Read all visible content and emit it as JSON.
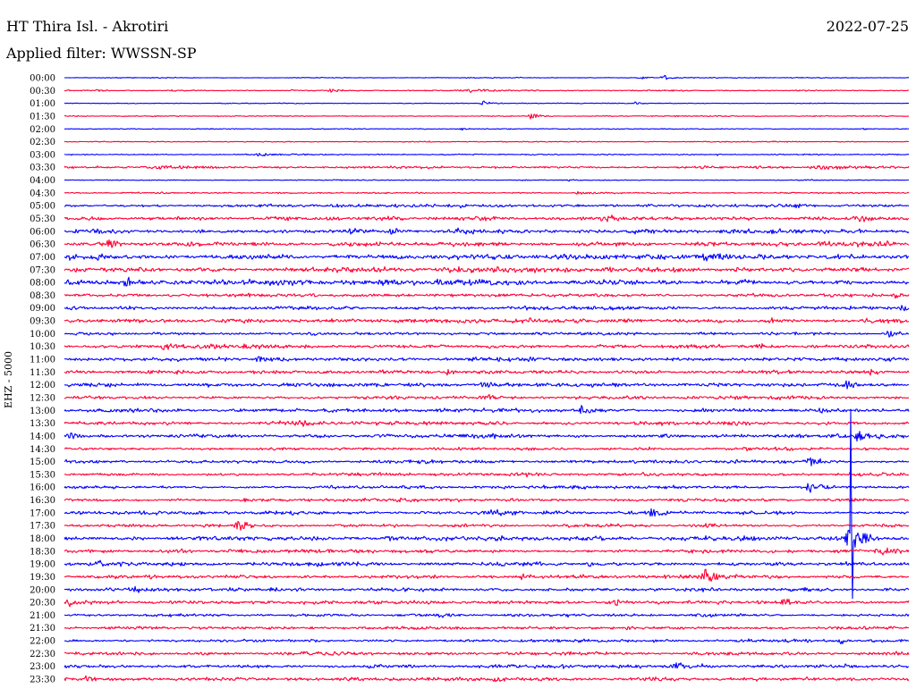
{
  "chart_data": {
    "type": "line",
    "title": "HT Thira Isl. - Akrotiri",
    "date": "2022-07-25",
    "subtitle": "Applied filter: WWSSN-SP",
    "ylabel": "EHZ - 5000",
    "xlim": [
      0,
      30
    ],
    "grid": false,
    "trace_colors": [
      "#0000ff",
      "#ff0033"
    ],
    "rows": [
      {
        "label": "00:00",
        "noise": 100,
        "events": [
          {
            "minute": 20.4,
            "amplitude": 700,
            "duration": 0.5
          },
          {
            "minute": 21.3,
            "amplitude": 1000,
            "duration": 0.6
          }
        ]
      },
      {
        "label": "00:30",
        "noise": 140,
        "events": [
          {
            "minute": 1.2,
            "amplitude": 500,
            "duration": 0.3
          },
          {
            "minute": 3.8,
            "amplitude": 500,
            "duration": 0.3
          },
          {
            "minute": 8.1,
            "amplitude": 500,
            "duration": 0.3
          },
          {
            "minute": 9.5,
            "amplitude": 700,
            "duration": 0.8
          },
          {
            "minute": 14.3,
            "amplitude": 700,
            "duration": 1.5
          }
        ]
      },
      {
        "label": "01:00",
        "noise": 100,
        "events": [
          {
            "minute": 14.9,
            "amplitude": 1000,
            "duration": 0.4
          },
          {
            "minute": 20.3,
            "amplitude": 700,
            "duration": 0.3
          }
        ]
      },
      {
        "label": "01:30",
        "noise": 130,
        "events": [
          {
            "minute": 16.6,
            "amplitude": 1400,
            "duration": 0.5
          }
        ]
      },
      {
        "label": "02:00",
        "noise": 100,
        "events": [
          {
            "minute": 14.1,
            "amplitude": 500,
            "duration": 0.3
          },
          {
            "minute": 28.4,
            "amplitude": 500,
            "duration": 0.4
          }
        ]
      },
      {
        "label": "02:30",
        "noise": 120,
        "events": []
      },
      {
        "label": "03:00",
        "noise": 140,
        "events": [
          {
            "minute": 7.0,
            "amplitude": 500,
            "duration": 1.5
          },
          {
            "minute": 23.2,
            "amplitude": 400,
            "duration": 0.3
          }
        ]
      },
      {
        "label": "03:30",
        "noise": 280,
        "events": [
          {
            "minute": 3.5,
            "amplitude": 600,
            "duration": 2.5
          },
          {
            "minute": 27.0,
            "amplitude": 700,
            "duration": 3.0
          }
        ]
      },
      {
        "label": "04:00",
        "noise": 130,
        "events": [
          {
            "minute": 17.9,
            "amplitude": 400,
            "duration": 0.3
          }
        ]
      },
      {
        "label": "04:30",
        "noise": 170,
        "events": [
          {
            "minute": 12.6,
            "amplitude": 500,
            "duration": 0.3
          },
          {
            "minute": 18.3,
            "amplitude": 700,
            "duration": 1.2
          }
        ]
      },
      {
        "label": "05:00",
        "noise": 350,
        "events": [
          {
            "minute": 13.6,
            "amplitude": 800,
            "duration": 0.4
          },
          {
            "minute": 14.1,
            "amplitude": 700,
            "duration": 0.4
          },
          {
            "minute": 26.0,
            "amplitude": 800,
            "duration": 1.0
          }
        ]
      },
      {
        "label": "05:30",
        "noise": 420,
        "events": [
          {
            "minute": 19.2,
            "amplitude": 1000,
            "duration": 2.0
          },
          {
            "minute": 23.8,
            "amplitude": 800,
            "duration": 0.5
          },
          {
            "minute": 28.3,
            "amplitude": 1500,
            "duration": 0.6
          }
        ]
      },
      {
        "label": "06:00",
        "noise": 520,
        "events": [
          {
            "minute": 10.3,
            "amplitude": 1200,
            "duration": 1.5
          },
          {
            "minute": 11.6,
            "amplitude": 1800,
            "duration": 0.5
          },
          {
            "minute": 14.0,
            "amplitude": 1000,
            "duration": 1.0
          }
        ]
      },
      {
        "label": "06:30",
        "noise": 520,
        "events": [
          {
            "minute": 1.6,
            "amplitude": 2500,
            "duration": 0.5
          },
          {
            "minute": 4.4,
            "amplitude": 1400,
            "duration": 0.5
          },
          {
            "minute": 26.9,
            "amplitude": 1400,
            "duration": 0.8
          },
          {
            "minute": 29.3,
            "amplitude": 1200,
            "duration": 0.4
          }
        ]
      },
      {
        "label": "07:00",
        "noise": 630,
        "events": [
          {
            "minute": 0.2,
            "amplitude": 1800,
            "duration": 0.4
          }
        ]
      },
      {
        "label": "07:30",
        "noise": 560,
        "events": [
          {
            "minute": 0.4,
            "amplitude": 1200,
            "duration": 0.5
          },
          {
            "minute": 19.3,
            "amplitude": 1800,
            "duration": 0.4
          }
        ]
      },
      {
        "label": "08:00",
        "noise": 630,
        "events": [
          {
            "minute": 2.3,
            "amplitude": 1500,
            "duration": 1.2
          },
          {
            "minute": 11.4,
            "amplitude": 1400,
            "duration": 0.4
          }
        ]
      },
      {
        "label": "08:30",
        "noise": 420,
        "events": [
          {
            "minute": 8.8,
            "amplitude": 1000,
            "duration": 0.3
          },
          {
            "minute": 29.5,
            "amplitude": 1400,
            "duration": 0.4
          }
        ]
      },
      {
        "label": "09:00",
        "noise": 420,
        "events": [
          {
            "minute": 29.8,
            "amplitude": 1600,
            "duration": 0.5
          }
        ]
      },
      {
        "label": "09:30",
        "noise": 520,
        "events": [
          {
            "minute": 16.5,
            "amplitude": 1400,
            "duration": 0.6
          },
          {
            "minute": 28.3,
            "amplitude": 1300,
            "duration": 0.6
          }
        ]
      },
      {
        "label": "10:00",
        "noise": 350,
        "events": [
          {
            "minute": 29.3,
            "amplitude": 1500,
            "duration": 0.6
          }
        ]
      },
      {
        "label": "10:30",
        "noise": 450,
        "events": [
          {
            "minute": 3.5,
            "amplitude": 1300,
            "duration": 0.8
          },
          {
            "minute": 24.7,
            "amplitude": 1300,
            "duration": 0.8
          }
        ]
      },
      {
        "label": "11:00",
        "noise": 450,
        "events": [
          {
            "minute": 6.9,
            "amplitude": 1300,
            "duration": 0.5
          },
          {
            "minute": 29.2,
            "amplitude": 1500,
            "duration": 0.5
          }
        ]
      },
      {
        "label": "11:30",
        "noise": 450,
        "events": [
          {
            "minute": 13.6,
            "amplitude": 1700,
            "duration": 0.4
          },
          {
            "minute": 28.7,
            "amplitude": 1500,
            "duration": 0.5
          }
        ]
      },
      {
        "label": "12:00",
        "noise": 450,
        "events": [
          {
            "minute": 14.9,
            "amplitude": 2200,
            "duration": 0.5
          },
          {
            "minute": 27.8,
            "amplitude": 1800,
            "duration": 0.5
          }
        ]
      },
      {
        "label": "12:30",
        "noise": 380,
        "events": [
          {
            "minute": 15.0,
            "amplitude": 1000,
            "duration": 0.6
          }
        ]
      },
      {
        "label": "13:00",
        "noise": 420,
        "events": [
          {
            "minute": 18.4,
            "amplitude": 1800,
            "duration": 0.6
          },
          {
            "minute": 26.9,
            "amplitude": 1300,
            "duration": 0.4
          }
        ]
      },
      {
        "label": "13:30",
        "noise": 420,
        "events": [
          {
            "minute": 8.5,
            "amplitude": 1000,
            "duration": 1.5
          }
        ]
      },
      {
        "label": "14:00",
        "noise": 450,
        "events": [
          {
            "minute": 0.2,
            "amplitude": 1400,
            "duration": 0.4
          },
          {
            "minute": 28.2,
            "amplitude": 2200,
            "duration": 0.8
          }
        ]
      },
      {
        "label": "14:30",
        "noise": 350,
        "events": []
      },
      {
        "label": "15:00",
        "noise": 380,
        "events": [
          {
            "minute": 26.5,
            "amplitude": 1800,
            "duration": 0.7
          }
        ]
      },
      {
        "label": "15:30",
        "noise": 350,
        "events": [
          {
            "minute": 16.0,
            "amplitude": 1000,
            "duration": 1.0
          }
        ]
      },
      {
        "label": "16:00",
        "noise": 380,
        "events": [
          {
            "minute": 26.5,
            "amplitude": 1800,
            "duration": 0.7
          }
        ]
      },
      {
        "label": "16:30",
        "noise": 350,
        "events": []
      },
      {
        "label": "17:00",
        "noise": 380,
        "events": [
          {
            "minute": 15.2,
            "amplitude": 1000,
            "duration": 1.0
          },
          {
            "minute": 20.9,
            "amplitude": 1800,
            "duration": 0.7
          }
        ]
      },
      {
        "label": "17:30",
        "noise": 380,
        "events": [
          {
            "minute": 6.2,
            "amplitude": 2500,
            "duration": 0.6
          }
        ]
      },
      {
        "label": "18:00",
        "noise": 490,
        "events": [
          {
            "minute": 11.5,
            "amplitude": 1500,
            "duration": 0.5
          },
          {
            "minute": 27.95,
            "max": 50000,
            "min": -23500
          },
          {
            "minute": 27.9,
            "amplitude": 4500,
            "duration": 1.0
          }
        ]
      },
      {
        "label": "18:30",
        "noise": 420,
        "events": [
          {
            "minute": 29.0,
            "amplitude": 1400,
            "duration": 1.5
          }
        ]
      },
      {
        "label": "19:00",
        "noise": 450,
        "events": [
          {
            "minute": 1.2,
            "amplitude": 1800,
            "duration": 0.4
          },
          {
            "minute": 2.0,
            "amplitude": 1300,
            "duration": 0.3
          },
          {
            "minute": 17.4,
            "amplitude": 1400,
            "duration": 0.3
          },
          {
            "minute": 18.7,
            "amplitude": 1300,
            "duration": 0.3
          }
        ]
      },
      {
        "label": "19:30",
        "noise": 420,
        "events": [
          {
            "minute": 16.3,
            "amplitude": 1600,
            "duration": 0.5
          },
          {
            "minute": 22.8,
            "amplitude": 3500,
            "duration": 0.6
          }
        ]
      },
      {
        "label": "20:00",
        "noise": 420,
        "events": [
          {
            "minute": 2.4,
            "amplitude": 1600,
            "duration": 0.5
          },
          {
            "minute": 8.4,
            "amplitude": 1000,
            "duration": 0.5
          }
        ]
      },
      {
        "label": "20:30",
        "noise": 420,
        "events": [
          {
            "minute": 0.2,
            "amplitude": 1500,
            "duration": 0.3
          },
          {
            "minute": 19.5,
            "amplitude": 1200,
            "duration": 1.0
          },
          {
            "minute": 25.6,
            "amplitude": 1500,
            "duration": 0.8
          }
        ]
      },
      {
        "label": "21:00",
        "noise": 350,
        "events": [
          {
            "minute": 13.2,
            "amplitude": 800,
            "duration": 0.8
          }
        ]
      },
      {
        "label": "21:30",
        "noise": 350,
        "events": [
          {
            "minute": 20.0,
            "amplitude": 700,
            "duration": 0.5
          }
        ]
      },
      {
        "label": "22:00",
        "noise": 320,
        "events": [
          {
            "minute": 27.6,
            "amplitude": 1200,
            "duration": 0.4
          }
        ]
      },
      {
        "label": "22:30",
        "noise": 350,
        "events": [
          {
            "minute": 29.5,
            "amplitude": 800,
            "duration": 0.5
          }
        ]
      },
      {
        "label": "23:00",
        "noise": 420,
        "events": [
          {
            "minute": 21.8,
            "amplitude": 1500,
            "duration": 1.2
          },
          {
            "minute": 27.8,
            "amplitude": 1000,
            "duration": 0.4
          }
        ]
      },
      {
        "label": "23:30",
        "noise": 420,
        "events": [
          {
            "minute": 0.8,
            "amplitude": 1600,
            "duration": 0.5
          },
          {
            "minute": 15.3,
            "amplitude": 1200,
            "duration": 0.4
          },
          {
            "minute": 26.4,
            "amplitude": 1000,
            "duration": 0.4
          }
        ]
      }
    ]
  }
}
